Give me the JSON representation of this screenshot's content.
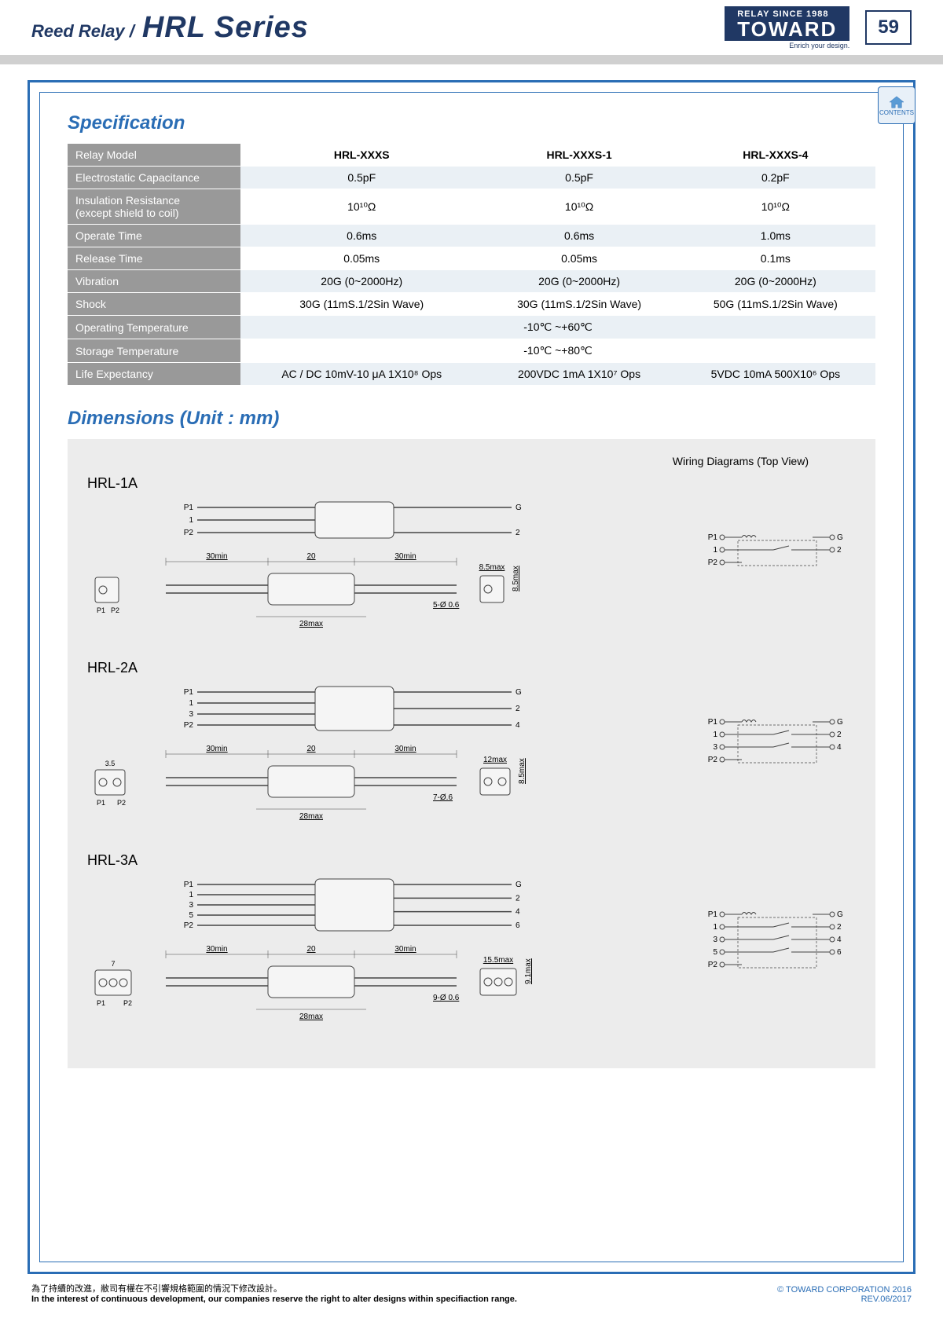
{
  "header": {
    "breadcrumb": "Reed Relay  /",
    "series": "HRL Series",
    "logo_top": "RELAY SINCE 1988",
    "logo_main": "TOWARD",
    "logo_tag": "Enrich your design.",
    "page_num": "59",
    "contents_label": "CONTENTS"
  },
  "spec": {
    "title": "Specification",
    "header_row": [
      "Relay Model",
      "HRL-XXXS",
      "HRL-XXXS-1",
      "HRL-XXXS-4"
    ],
    "rows": [
      {
        "label": "Electrostatic Capacitance",
        "cells": [
          "0.5pF",
          "0.5pF",
          "0.2pF"
        ]
      },
      {
        "label": "Insulation Resistance\n(except shield to coil)",
        "cells": [
          "10¹⁰Ω",
          "10¹⁰Ω",
          "10¹⁰Ω"
        ]
      },
      {
        "label": "Operate Time",
        "cells": [
          "0.6ms",
          "0.6ms",
          "1.0ms"
        ]
      },
      {
        "label": "Release Time",
        "cells": [
          "0.05ms",
          "0.05ms",
          "0.1ms"
        ]
      },
      {
        "label": "Vibration",
        "cells": [
          "20G (0~2000Hz)",
          "20G (0~2000Hz)",
          "20G (0~2000Hz)"
        ]
      },
      {
        "label": "Shock",
        "cells": [
          "30G (11mS.1/2Sin Wave)",
          "30G (11mS.1/2Sin Wave)",
          "50G (11mS.1/2Sin Wave)"
        ]
      },
      {
        "label": "Operating Temperature",
        "span": "-10℃ ~+60℃"
      },
      {
        "label": "Storage Temperature",
        "span": "-10℃ ~+80℃"
      },
      {
        "label": "Life Expectancy",
        "cells": [
          "AC / DC 10mV-10 μA 1X10⁸ Ops",
          "200VDC 1mA 1X10⁷ Ops",
          "5VDC 10mA 500X10⁶ Ops"
        ]
      }
    ]
  },
  "dims": {
    "title": "Dimensions (Unit : mm)",
    "wiring_label": "Wiring Diagrams (Top View)",
    "models": [
      {
        "name": "HRL-1A",
        "top_pins_left": [
          "P1",
          "1",
          "P2"
        ],
        "top_pins_right": [
          "G",
          "2"
        ],
        "dims": {
          "lead_left": "30min",
          "body": "20",
          "lead_right": "30min",
          "body_width": "28max",
          "end_w": "8.5max",
          "end_h": "8.5max",
          "hole": "5-Ø 0.6"
        },
        "end_pins": [
          "P1",
          "P2"
        ],
        "wiring_left": [
          "P1",
          "1",
          "P2"
        ],
        "wiring_right": [
          "G",
          "2"
        ]
      },
      {
        "name": "HRL-2A",
        "top_pins_left": [
          "P1",
          "1",
          "3",
          "P2"
        ],
        "top_pins_right": [
          "G",
          "2",
          "4"
        ],
        "dims": {
          "lead_left": "30min",
          "body": "20",
          "lead_right": "30min",
          "body_width": "28max",
          "end_w": "12max",
          "end_h": "8.5max",
          "end_l": "3.5",
          "hole": "7-Ø.6"
        },
        "end_pins": [
          "P1",
          "P2"
        ],
        "wiring_left": [
          "P1",
          "1",
          "3",
          "P2"
        ],
        "wiring_right": [
          "G",
          "2",
          "4"
        ]
      },
      {
        "name": "HRL-3A",
        "top_pins_left": [
          "P1",
          "1",
          "3",
          "5",
          "P2"
        ],
        "top_pins_right": [
          "G",
          "2",
          "4",
          "6"
        ],
        "dims": {
          "lead_left": "30min",
          "body": "20",
          "lead_right": "30min",
          "body_width": "28max",
          "end_w": "15.5max",
          "end_h": "9.1max",
          "end_l": "7",
          "hole": "9-Ø 0.6"
        },
        "end_pins": [
          "P1",
          "P2"
        ],
        "wiring_left": [
          "P1",
          "1",
          "3",
          "5",
          "P2"
        ],
        "wiring_right": [
          "G",
          "2",
          "4",
          "6"
        ]
      }
    ]
  },
  "footer": {
    "line1_cn": "為了持續的改進，敝司有權在不引響規格範圍的情況下修改設計。",
    "line1_en": "In the interest of continuous development, our companies reserve the right to alter designs within specifiaction range.",
    "copyright": "© TOWARD CORPORATION 2016",
    "rev": "REV.06/2017"
  },
  "colors": {
    "brand_blue": "#203864",
    "frame_blue": "#2a6db5",
    "table_header_gray": "#999999",
    "table_row_alt": "#eaf0f5",
    "dims_bg": "#ececec"
  }
}
